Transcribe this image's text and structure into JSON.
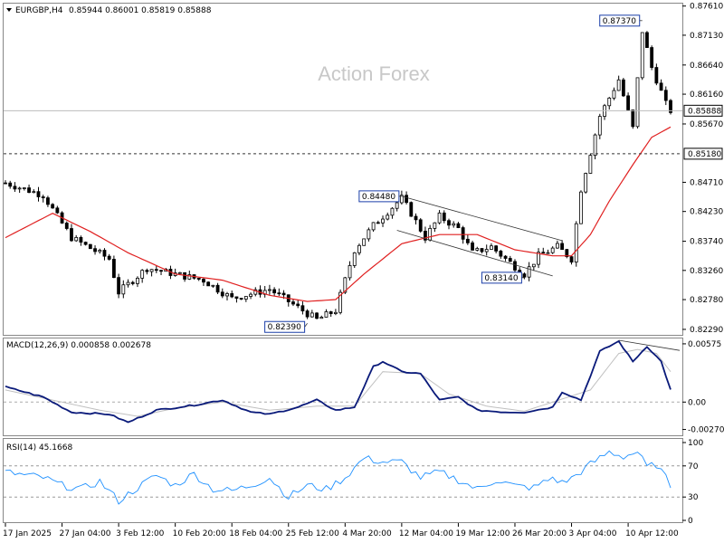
{
  "chart_data": {
    "type": "candlestick",
    "symbol_line": "EURGBP,H4",
    "ohlc_text": "0.85944 0.86001 0.85819 0.85888",
    "watermark": "Action Forex",
    "price_axis": {
      "ticks": [
        "0.87610",
        "0.87130",
        "0.86640",
        "0.86160",
        "0.85670",
        "0.84710",
        "0.84230",
        "0.83740",
        "0.83260",
        "0.82780",
        "0.82290"
      ],
      "range": [
        0.822,
        0.8765
      ]
    },
    "current_price": {
      "value": 0.85888,
      "label": "0.85888"
    },
    "support_level": {
      "value": 0.8518,
      "label": "0.85180"
    },
    "annotations": [
      {
        "label": "0.82390",
        "value": 0.8239,
        "index": 64
      },
      {
        "label": "0.84480",
        "value": 0.8448,
        "index": 84
      },
      {
        "label": "0.83140",
        "value": 0.8314,
        "index": 110
      },
      {
        "label": "0.87370",
        "value": 0.8737,
        "index": 135
      }
    ],
    "channel": {
      "upper": [
        [
          84,
          0.8448
        ],
        [
          118,
          0.8375
        ]
      ],
      "lower": [
        [
          83,
          0.8392
        ],
        [
          116,
          0.8317
        ]
      ]
    },
    "x_labels": [
      {
        "label": "17 Jan 2025",
        "index": 0
      },
      {
        "label": "27 Jan 04:00",
        "index": 12
      },
      {
        "label": "3 Feb 12:00",
        "index": 24
      },
      {
        "label": "10 Feb 20:00",
        "index": 36
      },
      {
        "label": "18 Feb 04:00",
        "index": 48
      },
      {
        "label": "25 Feb 12:00",
        "index": 60
      },
      {
        "label": "4 Mar 20:00",
        "index": 72
      },
      {
        "label": "12 Mar 04:00",
        "index": 84
      },
      {
        "label": "19 Mar 12:00",
        "index": 96
      },
      {
        "label": "26 Mar 20:00",
        "index": 108
      },
      {
        "label": "3 Apr 04:00",
        "index": 120
      },
      {
        "label": "10 Apr 12:00",
        "index": 132
      }
    ],
    "bar_count": 142,
    "close_path": [
      [
        0,
        0.847
      ],
      [
        8,
        0.845
      ],
      [
        14,
        0.838
      ],
      [
        22,
        0.8345
      ],
      [
        24,
        0.829
      ],
      [
        30,
        0.833
      ],
      [
        36,
        0.832
      ],
      [
        42,
        0.831
      ],
      [
        48,
        0.828
      ],
      [
        56,
        0.8295
      ],
      [
        62,
        0.8265
      ],
      [
        66,
        0.8245
      ],
      [
        70,
        0.826
      ],
      [
        74,
        0.836
      ],
      [
        78,
        0.84
      ],
      [
        84,
        0.8445
      ],
      [
        86,
        0.842
      ],
      [
        89,
        0.838
      ],
      [
        92,
        0.8415
      ],
      [
        96,
        0.8395
      ],
      [
        99,
        0.8355
      ],
      [
        103,
        0.8365
      ],
      [
        106,
        0.8345
      ],
      [
        110,
        0.832
      ],
      [
        113,
        0.835
      ],
      [
        117,
        0.8365
      ],
      [
        120,
        0.8345
      ],
      [
        122,
        0.846
      ],
      [
        126,
        0.858
      ],
      [
        130,
        0.864
      ],
      [
        133,
        0.856
      ],
      [
        135,
        0.872
      ],
      [
        137,
        0.866
      ],
      [
        140,
        0.86
      ],
      [
        141,
        0.8589
      ]
    ],
    "ma_path": [
      [
        0,
        0.838
      ],
      [
        10,
        0.842
      ],
      [
        18,
        0.839
      ],
      [
        26,
        0.8355
      ],
      [
        36,
        0.832
      ],
      [
        46,
        0.831
      ],
      [
        56,
        0.8285
      ],
      [
        64,
        0.8275
      ],
      [
        70,
        0.8278
      ],
      [
        76,
        0.832
      ],
      [
        84,
        0.837
      ],
      [
        92,
        0.8385
      ],
      [
        100,
        0.8385
      ],
      [
        108,
        0.836
      ],
      [
        116,
        0.835
      ],
      [
        120,
        0.835
      ],
      [
        124,
        0.8385
      ],
      [
        128,
        0.844
      ],
      [
        133,
        0.85
      ],
      [
        137,
        0.8545
      ],
      [
        141,
        0.8562
      ]
    ],
    "macd": {
      "title": "MACD(12,26,9) 0.000858 0.002678",
      "ticks": [
        "0.00575",
        "0.00",
        "-0.002702"
      ],
      "range": [
        -0.0031,
        0.0061
      ],
      "main_path": [
        [
          0,
          0.0015
        ],
        [
          8,
          0.0005
        ],
        [
          14,
          -0.001
        ],
        [
          22,
          -0.0012
        ],
        [
          26,
          -0.002
        ],
        [
          32,
          -0.0008
        ],
        [
          40,
          -0.0003
        ],
        [
          46,
          0.0002
        ],
        [
          52,
          -0.001
        ],
        [
          56,
          -0.0012
        ],
        [
          62,
          -0.0005
        ],
        [
          66,
          0.0002
        ],
        [
          70,
          -0.0008
        ],
        [
          74,
          -0.0005
        ],
        [
          78,
          0.0035
        ],
        [
          80,
          0.004
        ],
        [
          84,
          0.003
        ],
        [
          88,
          0.0028
        ],
        [
          92,
          0.0002
        ],
        [
          96,
          0.0005
        ],
        [
          100,
          -0.0008
        ],
        [
          106,
          -0.001
        ],
        [
          110,
          -0.001
        ],
        [
          116,
          -0.0005
        ],
        [
          118,
          0.001
        ],
        [
          122,
          0.0002
        ],
        [
          126,
          0.005
        ],
        [
          130,
          0.006
        ],
        [
          133,
          0.004
        ],
        [
          136,
          0.0055
        ],
        [
          139,
          0.004
        ],
        [
          141,
          0.0012
        ]
      ],
      "signal_path": [
        [
          0,
          0.0012
        ],
        [
          10,
          0.0002
        ],
        [
          20,
          -0.0008
        ],
        [
          28,
          -0.0014
        ],
        [
          36,
          -0.0006
        ],
        [
          46,
          0.0
        ],
        [
          56,
          -0.0008
        ],
        [
          66,
          -0.0004
        ],
        [
          74,
          -0.0004
        ],
        [
          80,
          0.003
        ],
        [
          88,
          0.0028
        ],
        [
          94,
          0.0008
        ],
        [
          102,
          -0.0004
        ],
        [
          110,
          -0.0009
        ],
        [
          118,
          0.0003
        ],
        [
          124,
          0.0012
        ],
        [
          130,
          0.0048
        ],
        [
          134,
          0.0052
        ],
        [
          138,
          0.0048
        ],
        [
          141,
          0.003
        ]
      ],
      "trendline": [
        [
          130,
          0.0061
        ],
        [
          141,
          0.0051
        ]
      ]
    },
    "rsi": {
      "title": "RSI(14) 45.1668",
      "ticks": [
        "100",
        "70",
        "30",
        "0"
      ],
      "range": [
        0,
        100
      ],
      "levels": [
        70,
        30
      ],
      "path": [
        [
          0,
          62
        ],
        [
          4,
          58
        ],
        [
          8,
          55
        ],
        [
          12,
          45
        ],
        [
          16,
          40
        ],
        [
          20,
          50
        ],
        [
          24,
          25
        ],
        [
          28,
          42
        ],
        [
          32,
          58
        ],
        [
          36,
          45
        ],
        [
          40,
          60
        ],
        [
          44,
          40
        ],
        [
          48,
          38
        ],
        [
          52,
          45
        ],
        [
          56,
          55
        ],
        [
          60,
          30
        ],
        [
          64,
          45
        ],
        [
          68,
          40
        ],
        [
          72,
          55
        ],
        [
          76,
          80
        ],
        [
          80,
          75
        ],
        [
          84,
          75
        ],
        [
          88,
          55
        ],
        [
          92,
          62
        ],
        [
          96,
          52
        ],
        [
          100,
          40
        ],
        [
          104,
          52
        ],
        [
          108,
          44
        ],
        [
          112,
          42
        ],
        [
          116,
          55
        ],
        [
          118,
          48
        ],
        [
          120,
          54
        ],
        [
          124,
          72
        ],
        [
          128,
          88
        ],
        [
          131,
          82
        ],
        [
          134,
          88
        ],
        [
          136,
          68
        ],
        [
          138,
          72
        ],
        [
          141,
          45
        ]
      ]
    }
  }
}
